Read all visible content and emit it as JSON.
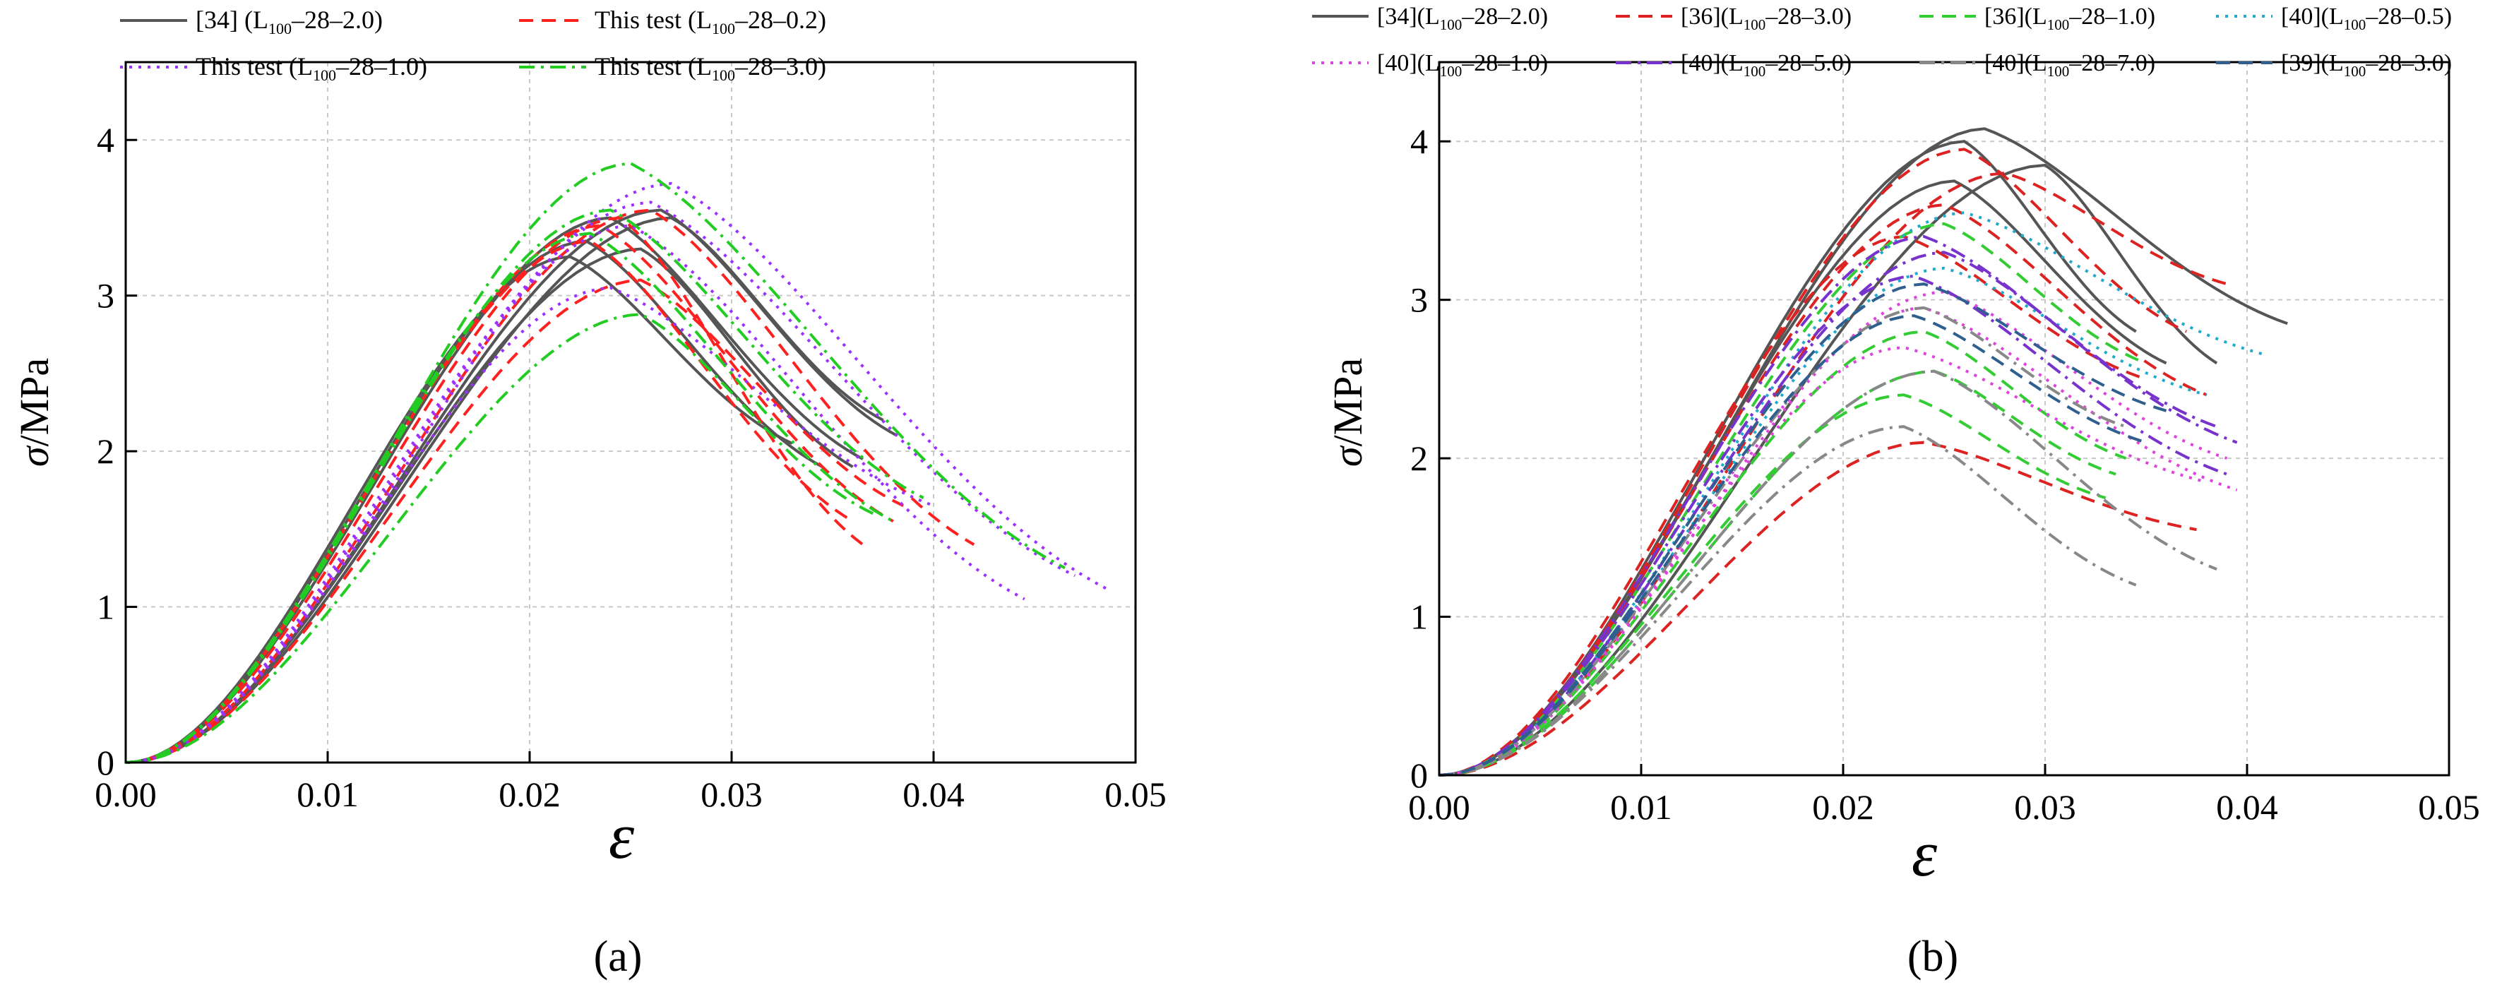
{
  "figure": {
    "caption_a": "(a)",
    "caption_b": "(b)"
  },
  "chart_data": [
    {
      "panel": "a",
      "type": "line",
      "xlabel": "ε",
      "ylabel": "σ/MPa",
      "xlim": [
        0,
        0.05
      ],
      "ylim": [
        0,
        4.5
      ],
      "xticks": [
        "0.00",
        "0.01",
        "0.02",
        "0.03",
        "0.04",
        "0.05"
      ],
      "yticks": [
        "0",
        "1",
        "2",
        "3",
        "4"
      ],
      "legend": [
        {
          "pre": "[34] (L",
          "sub": "100",
          "post": "–28–2.0)",
          "style": "solid",
          "color": "#555555"
        },
        {
          "pre": "This test (L",
          "sub": "100",
          "post": "–28–0.2)",
          "style": "dash",
          "color": "#ff2020"
        },
        {
          "pre": "This test (L",
          "sub": "100",
          "post": "–28–1.0)",
          "style": "dot",
          "color": "#9b30ff"
        },
        {
          "pre": "This test (L",
          "sub": "100",
          "post": "–28–3.0)",
          "style": "dashdot",
          "color": "#22cc22"
        }
      ],
      "series": [
        {
          "name": "[34] (L100–28–2.0)",
          "color": "#555555",
          "style": "solid",
          "curves": [
            {
              "peak": [
                0.0228,
                3.35
              ],
              "end": [
                0.0345,
                1.9
              ]
            },
            {
              "peak": [
                0.0265,
                3.55
              ],
              "end": [
                0.0382,
                2.1
              ]
            },
            {
              "peak": [
                0.024,
                3.5
              ],
              "end": [
                0.0365,
                1.95
              ]
            },
            {
              "peak": [
                0.022,
                3.25
              ],
              "end": [
                0.033,
                2.05
              ]
            },
            {
              "peak": [
                0.0255,
                3.3
              ],
              "end": [
                0.036,
                1.9
              ]
            },
            {
              "peak": [
                0.027,
                3.5
              ],
              "end": [
                0.0375,
                2.2
              ]
            }
          ]
        },
        {
          "name": "This test (L100–28–0.2)",
          "color": "#ff2020",
          "style": "dash",
          "curves": [
            {
              "peak": [
                0.0245,
                3.5
              ],
              "end": [
                0.0365,
                1.4
              ]
            },
            {
              "peak": [
                0.023,
                3.35
              ],
              "end": [
                0.036,
                1.55
              ]
            },
            {
              "peak": [
                0.0255,
                3.1
              ],
              "end": [
                0.0385,
                1.65
              ]
            },
            {
              "peak": [
                0.026,
                3.55
              ],
              "end": [
                0.042,
                1.4
              ]
            },
            {
              "peak": [
                0.0235,
                3.45
              ],
              "end": [
                0.038,
                1.55
              ]
            }
          ]
        },
        {
          "name": "This test (L100–28–1.0)",
          "color": "#9b30ff",
          "style": "dot",
          "curves": [
            {
              "peak": [
                0.027,
                3.72
              ],
              "end": [
                0.0488,
                1.1
              ]
            },
            {
              "peak": [
                0.026,
                3.6
              ],
              "end": [
                0.047,
                1.2
              ]
            },
            {
              "peak": [
                0.025,
                3.45
              ],
              "end": [
                0.0445,
                1.05
              ]
            },
            {
              "peak": [
                0.024,
                3.05
              ],
              "end": [
                0.04,
                1.65
              ]
            }
          ]
        },
        {
          "name": "This test (L100–28–3.0)",
          "color": "#22cc22",
          "style": "dashdot",
          "curves": [
            {
              "peak": [
                0.025,
                3.85
              ],
              "end": [
                0.0465,
                1.25
              ]
            },
            {
              "peak": [
                0.0255,
                2.88
              ],
              "end": [
                0.037,
                1.6
              ]
            },
            {
              "peak": [
                0.024,
                3.55
              ],
              "end": [
                0.0395,
                1.7
              ]
            },
            {
              "peak": [
                0.023,
                3.4
              ],
              "end": [
                0.038,
                1.55
              ]
            }
          ]
        }
      ]
    },
    {
      "panel": "b",
      "type": "line",
      "xlabel": "ε",
      "ylabel": "σ/MPa",
      "xlim": [
        0,
        0.05
      ],
      "ylim": [
        0,
        4.5
      ],
      "xticks": [
        "0.00",
        "0.01",
        "0.02",
        "0.03",
        "0.04",
        "0.05"
      ],
      "yticks": [
        "0",
        "1",
        "2",
        "3",
        "4"
      ],
      "legend": [
        {
          "pre": "[34](L",
          "sub": "100",
          "post": "–28–2.0)",
          "style": "solid",
          "color": "#555555"
        },
        {
          "pre": "[36](L",
          "sub": "100",
          "post": "–28–3.0)",
          "style": "dash",
          "color": "#dd2222"
        },
        {
          "pre": "[36](L",
          "sub": "100",
          "post": "–28–1.0)",
          "style": "dash",
          "color": "#33cc33"
        },
        {
          "pre": "[40](L",
          "sub": "100",
          "post": "–28–0.5)",
          "style": "dot",
          "color": "#22aacc"
        },
        {
          "pre": "[40](L",
          "sub": "100",
          "post": "–28–1.0)",
          "style": "dot",
          "color": "#dd44dd"
        },
        {
          "pre": "[40](L",
          "sub": "100",
          "post": "–28–5.0)",
          "style": "dashdot",
          "color": "#7733cc"
        },
        {
          "pre": "[40](L",
          "sub": "100",
          "post": "–28–7.0)",
          "style": "dashdot",
          "color": "#888888"
        },
        {
          "pre": "[39](L",
          "sub": "100",
          "post": "–28–3.0)",
          "style": "dash",
          "color": "#2f5f8f"
        }
      ],
      "series": [
        {
          "name": "[34](L100–28–2.0)",
          "color": "#555555",
          "style": "solid",
          "curves": [
            {
              "peak": [
                0.027,
                4.08
              ],
              "end": [
                0.042,
                2.85
              ]
            },
            {
              "peak": [
                0.03,
                3.85
              ],
              "end": [
                0.0385,
                2.6
              ]
            },
            {
              "peak": [
                0.0255,
                3.75
              ],
              "end": [
                0.036,
                2.6
              ]
            },
            {
              "peak": [
                0.026,
                4.0
              ],
              "end": [
                0.0345,
                2.8
              ]
            }
          ]
        },
        {
          "name": "[36](L100–28–3.0)",
          "color": "#dd2222",
          "style": "dash",
          "curves": [
            {
              "peak": [
                0.028,
                3.8
              ],
              "end": [
                0.039,
                3.1
              ]
            },
            {
              "peak": [
                0.026,
                3.95
              ],
              "end": [
                0.037,
                2.8
              ]
            },
            {
              "peak": [
                0.024,
                2.1
              ],
              "end": [
                0.0375,
                1.55
              ]
            },
            {
              "peak": [
                0.023,
                3.4
              ],
              "end": [
                0.035,
                2.5
              ]
            },
            {
              "peak": [
                0.025,
                3.6
              ],
              "end": [
                0.038,
                2.4
              ]
            }
          ]
        },
        {
          "name": "[36](L100–28–1.0)",
          "color": "#33cc33",
          "style": "dash",
          "curves": [
            {
              "peak": [
                0.025,
                3.48
              ],
              "end": [
                0.035,
                2.6
              ]
            },
            {
              "peak": [
                0.024,
                2.8
              ],
              "end": [
                0.034,
                2.0
              ]
            },
            {
              "peak": [
                0.023,
                2.4
              ],
              "end": [
                0.033,
                1.75
              ]
            },
            {
              "peak": [
                0.0245,
                2.55
              ],
              "end": [
                0.0335,
                1.9
              ]
            }
          ]
        },
        {
          "name": "[40](L100–28–0.5)",
          "color": "#22aacc",
          "style": "dot",
          "curves": [
            {
              "peak": [
                0.026,
                3.55
              ],
              "end": [
                0.041,
                2.65
              ]
            },
            {
              "peak": [
                0.025,
                3.2
              ],
              "end": [
                0.038,
                2.4
              ]
            }
          ]
        },
        {
          "name": "[40](L100–28–1.0)",
          "color": "#dd44dd",
          "style": "dot",
          "curves": [
            {
              "peak": [
                0.024,
                2.95
              ],
              "end": [
                0.0395,
                1.8
              ]
            },
            {
              "peak": [
                0.023,
                2.7
              ],
              "end": [
                0.038,
                1.85
              ]
            },
            {
              "peak": [
                0.025,
                3.05
              ],
              "end": [
                0.039,
                2.0
              ]
            }
          ]
        },
        {
          "name": "[40](L100–28–5.0)",
          "color": "#7733cc",
          "style": "dashdot",
          "curves": [
            {
              "peak": [
                0.024,
                3.4
              ],
              "end": [
                0.0395,
                2.1
              ]
            },
            {
              "peak": [
                0.0235,
                3.15
              ],
              "end": [
                0.039,
                1.9
              ]
            },
            {
              "peak": [
                0.025,
                3.3
              ],
              "end": [
                0.0385,
                2.2
              ]
            }
          ]
        },
        {
          "name": "[40](L100–28–7.0)",
          "color": "#888888",
          "style": "dashdot",
          "curves": [
            {
              "peak": [
                0.024,
                2.95
              ],
              "end": [
                0.034,
                2.2
              ]
            },
            {
              "peak": [
                0.023,
                2.2
              ],
              "end": [
                0.0345,
                1.2
              ]
            },
            {
              "peak": [
                0.0245,
                2.55
              ],
              "end": [
                0.0385,
                1.3
              ]
            }
          ]
        },
        {
          "name": "[39](L100–28–3.0)",
          "color": "#2f5f8f",
          "style": "dash",
          "curves": [
            {
              "peak": [
                0.024,
                3.1
              ],
              "end": [
                0.036,
                2.3
              ]
            },
            {
              "peak": [
                0.0235,
                2.9
              ],
              "end": [
                0.035,
                2.1
              ]
            }
          ]
        }
      ]
    }
  ]
}
